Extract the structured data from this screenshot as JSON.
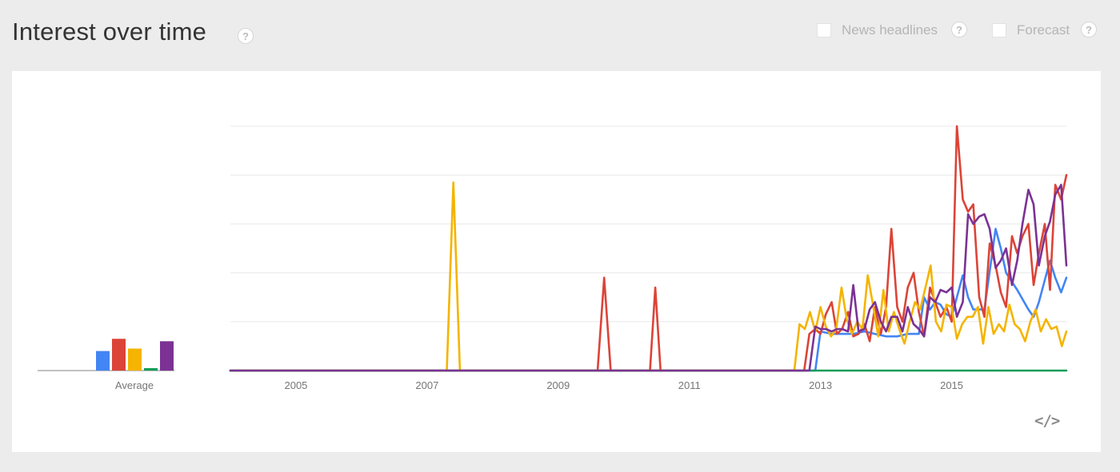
{
  "header": {
    "title": "Interest over time",
    "help_glyph": "?",
    "options": [
      {
        "label": "News headlines",
        "checked": false
      },
      {
        "label": "Forecast",
        "checked": false
      }
    ]
  },
  "embed_glyph": "</>",
  "colors": {
    "blue": "#4285f4",
    "red": "#db4437",
    "yellow": "#f4b400",
    "green": "#0f9d58",
    "purple": "#7b3294",
    "grid": "#e8e8e8",
    "axis": "#9e9e9e"
  },
  "chart_data": [
    {
      "type": "bar",
      "xlabel": "Average",
      "ylim": [
        0,
        100
      ],
      "values": [
        8,
        13,
        9,
        1,
        12
      ],
      "colors": [
        "#4285f4",
        "#db4437",
        "#f4b400",
        "#0f9d58",
        "#7b3294"
      ]
    },
    {
      "type": "line",
      "xlim": [
        2004.0,
        2016.75
      ],
      "ylim": [
        0,
        100
      ],
      "grid": true,
      "yticks": [
        0,
        20,
        40,
        60,
        80,
        100
      ],
      "xticks": [
        "2005",
        "2007",
        "2009",
        "2011",
        "2013",
        "2015"
      ],
      "tick_values": [
        2005,
        2007,
        2009,
        2011,
        2013,
        2015
      ],
      "series": [
        {
          "color": "#4285f4",
          "x": [
            2004.0,
            2012.83,
            2012.92,
            2013.0,
            2013.17,
            2013.33,
            2013.5,
            2013.67,
            2013.83,
            2014.0,
            2014.17,
            2014.33,
            2014.5,
            2014.58,
            2014.67,
            2014.75,
            2014.83,
            2014.92,
            2015.0,
            2015.08,
            2015.17,
            2015.25,
            2015.33,
            2015.5,
            2015.67,
            2015.75,
            2015.83,
            2016.0,
            2016.17,
            2016.25,
            2016.33,
            2016.5,
            2016.58,
            2016.67,
            2016.75
          ],
          "y": [
            0,
            0,
            0,
            16,
            15,
            15,
            15,
            16,
            15,
            14,
            14,
            15,
            15,
            30,
            25,
            28,
            27,
            23,
            22,
            30,
            39,
            30,
            25,
            25,
            58,
            50,
            40,
            33,
            25,
            22,
            28,
            45,
            38,
            32,
            38
          ]
        },
        {
          "color": "#db4437",
          "x": [
            2004.0,
            2009.6,
            2009.7,
            2009.8,
            2010.4,
            2010.48,
            2010.56,
            2012.75,
            2012.83,
            2012.92,
            2013.0,
            2013.08,
            2013.17,
            2013.25,
            2013.33,
            2013.42,
            2013.5,
            2013.58,
            2013.67,
            2013.75,
            2013.83,
            2013.92,
            2014.0,
            2014.08,
            2014.17,
            2014.25,
            2014.33,
            2014.42,
            2014.5,
            2014.58,
            2014.67,
            2014.75,
            2014.83,
            2014.92,
            2015.0,
            2015.08,
            2015.17,
            2015.25,
            2015.33,
            2015.42,
            2015.5,
            2015.58,
            2015.67,
            2015.75,
            2015.83,
            2015.92,
            2016.0,
            2016.08,
            2016.17,
            2016.25,
            2016.33,
            2016.42,
            2016.5,
            2016.58,
            2016.67,
            2016.75
          ],
          "y": [
            0,
            0,
            38,
            0,
            0,
            34,
            0,
            0,
            15,
            17,
            15,
            23,
            28,
            15,
            17,
            24,
            14,
            15,
            19,
            12,
            26,
            15,
            26,
            58,
            26,
            20,
            34,
            40,
            24,
            14,
            34,
            28,
            22,
            26,
            20,
            100,
            70,
            65,
            68,
            30,
            22,
            52,
            43,
            32,
            26,
            55,
            48,
            55,
            60,
            35,
            48,
            60,
            33,
            76,
            70,
            80
          ]
        },
        {
          "color": "#f4b400",
          "x": [
            2004.0,
            2007.3,
            2007.4,
            2007.5,
            2012.6,
            2012.68,
            2012.76,
            2012.84,
            2012.92,
            2013.0,
            2013.08,
            2013.16,
            2013.24,
            2013.32,
            2013.4,
            2013.48,
            2013.56,
            2013.64,
            2013.72,
            2013.8,
            2013.88,
            2013.96,
            2014.04,
            2014.12,
            2014.2,
            2014.28,
            2014.36,
            2014.44,
            2014.52,
            2014.6,
            2014.68,
            2014.76,
            2014.84,
            2014.92,
            2015.0,
            2015.08,
            2015.16,
            2015.24,
            2015.32,
            2015.4,
            2015.48,
            2015.56,
            2015.64,
            2015.72,
            2015.8,
            2015.88,
            2015.96,
            2016.04,
            2016.12,
            2016.2,
            2016.28,
            2016.36,
            2016.44,
            2016.52,
            2016.6,
            2016.68,
            2016.75
          ],
          "y": [
            0,
            0,
            77,
            0,
            0,
            19,
            17,
            24,
            16,
            26,
            18,
            14,
            17,
            34,
            21,
            15,
            20,
            17,
            39,
            27,
            14,
            33,
            16,
            24,
            17,
            11,
            20,
            28,
            25,
            34,
            43,
            20,
            16,
            27,
            26,
            13,
            19,
            22,
            22,
            26,
            11,
            26,
            15,
            19,
            16,
            27,
            19,
            17,
            12,
            20,
            25,
            16,
            21,
            17,
            18,
            10,
            16
          ]
        },
        {
          "color": "#0f9d58",
          "x": [
            2004.0,
            2016.75
          ],
          "y": [
            0,
            0
          ]
        },
        {
          "color": "#7b3294",
          "x": [
            2004.0,
            2012.83,
            2012.92,
            2013.0,
            2013.08,
            2013.17,
            2013.25,
            2013.33,
            2013.42,
            2013.5,
            2013.58,
            2013.67,
            2013.75,
            2013.83,
            2013.92,
            2014.0,
            2014.08,
            2014.17,
            2014.25,
            2014.33,
            2014.42,
            2014.5,
            2014.58,
            2014.67,
            2014.75,
            2014.83,
            2014.92,
            2015.0,
            2015.08,
            2015.17,
            2015.25,
            2015.33,
            2015.42,
            2015.5,
            2015.58,
            2015.67,
            2015.75,
            2015.83,
            2015.92,
            2016.0,
            2016.08,
            2016.17,
            2016.25,
            2016.33,
            2016.42,
            2016.5,
            2016.58,
            2016.67,
            2016.75
          ],
          "y": [
            0,
            0,
            18,
            17,
            17,
            16,
            17,
            17,
            16,
            35,
            16,
            17,
            25,
            28,
            20,
            16,
            22,
            22,
            16,
            26,
            19,
            17,
            14,
            30,
            28,
            33,
            32,
            34,
            22,
            28,
            64,
            60,
            63,
            64,
            58,
            42,
            45,
            50,
            35,
            45,
            60,
            74,
            68,
            43,
            55,
            61,
            72,
            76,
            43
          ]
        }
      ]
    }
  ]
}
